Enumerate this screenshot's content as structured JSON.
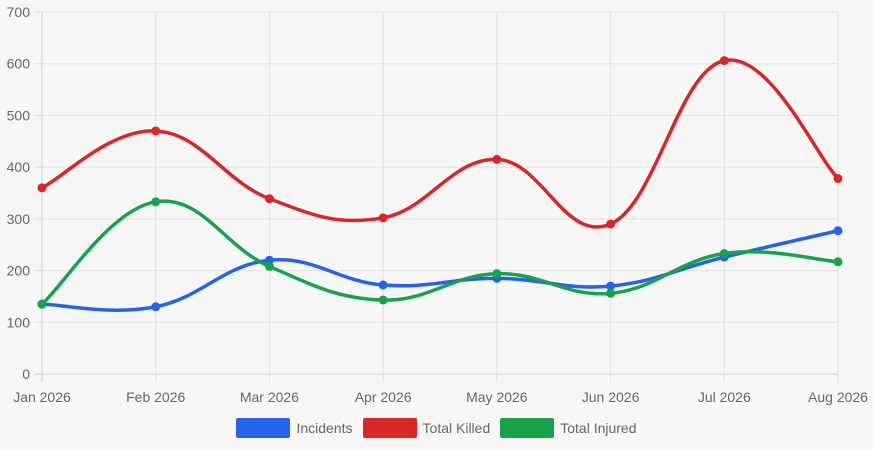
{
  "chart_data": {
    "type": "line",
    "title": "",
    "xlabel": "",
    "ylabel": "",
    "categories": [
      "Jan 2026",
      "Feb 2026",
      "Mar 2026",
      "Apr 2026",
      "May 2026",
      "Jun 2026",
      "Jul 2026",
      "Aug 2026"
    ],
    "ylim": [
      0,
      700
    ],
    "yticks": [
      "0",
      "100",
      "200",
      "300",
      "400",
      "500",
      "600",
      "700"
    ],
    "grid": true,
    "legend_position": "bottom",
    "series": [
      {
        "name": "Incidents",
        "color": "#2563eb",
        "values": [
          135,
          130,
          220,
          172,
          185,
          170,
          226,
          277
        ]
      },
      {
        "name": "Total Killed",
        "color": "#dc2626",
        "values": [
          360,
          470,
          339,
          302,
          415,
          290,
          606,
          378
        ]
      },
      {
        "name": "Total Injured",
        "color": "#16a34a",
        "values": [
          135,
          333,
          208,
          143,
          194,
          156,
          233,
          217
        ]
      }
    ]
  }
}
